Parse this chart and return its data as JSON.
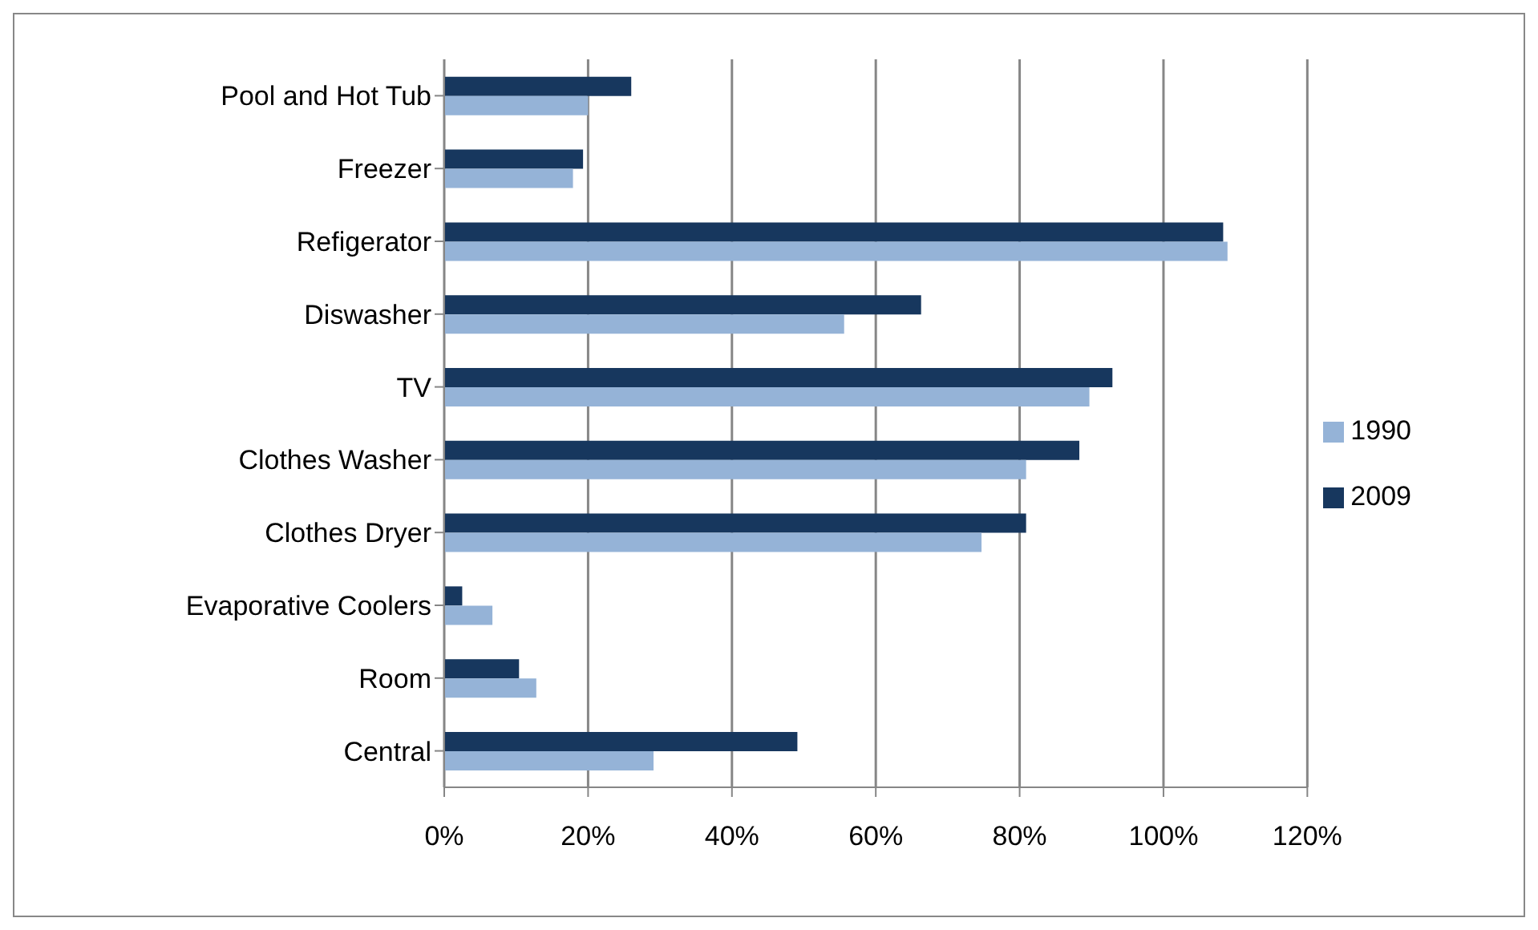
{
  "chart_data": {
    "type": "bar",
    "orientation": "horizontal",
    "categories": [
      "Pool and Hot Tub",
      "Freezer",
      "Refigerator",
      "Diswasher",
      "TV",
      "Clothes Washer",
      "Clothes Dryer",
      "Evaporative Coolers",
      "Room",
      "Central"
    ],
    "series": [
      {
        "name": "2009",
        "color": "#17375e",
        "values": [
          26,
          19.3,
          108.3,
          66.3,
          92.9,
          88.3,
          80.9,
          2.5,
          10.4,
          49.1
        ]
      },
      {
        "name": "1990",
        "color": "#95b3d7",
        "values": [
          20,
          17.9,
          108.9,
          55.6,
          89.7,
          80.9,
          74.7,
          6.7,
          12.8,
          29.1
        ]
      }
    ],
    "xlim": [
      0,
      120
    ],
    "xticks": [
      {
        "value": 0,
        "label": "0%"
      },
      {
        "value": 20,
        "label": "20%"
      },
      {
        "value": 40,
        "label": "40%"
      },
      {
        "value": 60,
        "label": "60%"
      },
      {
        "value": 80,
        "label": "80%"
      },
      {
        "value": 100,
        "label": "100%"
      },
      {
        "value": 120,
        "label": "120%"
      }
    ],
    "grid": "x",
    "legend": "right"
  }
}
